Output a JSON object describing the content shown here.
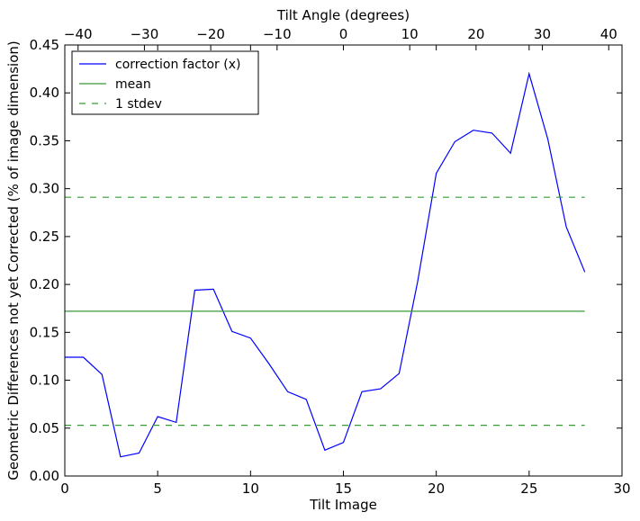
{
  "chart_data": {
    "type": "line",
    "xlabel": "Tilt Image",
    "ylabel": "Geometric Differences not yet Corrected (% of image dimension)",
    "top_xlabel": "Tilt Angle (degrees)",
    "xlim": [
      0,
      30
    ],
    "ylim": [
      0,
      0.45
    ],
    "top_xlim": [
      -42,
      42
    ],
    "x_ticks": [
      0,
      5,
      10,
      15,
      20,
      25,
      30
    ],
    "x_tick_labels": [
      "0",
      "5",
      "10",
      "15",
      "20",
      "25",
      "30"
    ],
    "y_ticks": [
      0,
      0.05,
      0.1,
      0.15,
      0.2,
      0.25,
      0.3,
      0.35,
      0.4,
      0.45
    ],
    "y_tick_labels": [
      "0.00",
      "0.05",
      "0.10",
      "0.15",
      "0.20",
      "0.25",
      "0.30",
      "0.35",
      "0.40",
      "0.45"
    ],
    "top_x_ticks": [
      -40,
      -30,
      -20,
      -10,
      0,
      10,
      20,
      30,
      40
    ],
    "top_x_tick_labels": [
      "−40",
      "−30",
      "−20",
      "−10",
      "0",
      "10",
      "20",
      "30",
      "40"
    ],
    "grid": false,
    "legend_placement": "top-left",
    "series": [
      {
        "name": "correction factor (x)",
        "color": "#0000ff",
        "style": "solid",
        "x": [
          0,
          1,
          2,
          3,
          4,
          5,
          6,
          7,
          8,
          9,
          10,
          11,
          12,
          13,
          14,
          15,
          16,
          17,
          18,
          19,
          20,
          21,
          22,
          23,
          24,
          25,
          26,
          27,
          28
        ],
        "y": [
          0.124,
          0.124,
          0.106,
          0.02,
          0.024,
          0.062,
          0.056,
          0.194,
          0.195,
          0.151,
          0.144,
          0.117,
          0.088,
          0.08,
          0.027,
          0.035,
          0.088,
          0.091,
          0.107,
          0.203,
          0.316,
          0.349,
          0.361,
          0.358,
          0.337,
          0.42,
          0.352,
          0.26,
          0.213
        ]
      },
      {
        "name": "mean",
        "color": "#3a9a3a",
        "style": "solid",
        "x": [
          0,
          28
        ],
        "y": [
          0.172,
          0.172
        ]
      },
      {
        "name": "1 stdev",
        "color": "#3a9a3a",
        "style": "dashed",
        "x": [
          0,
          28
        ],
        "y": [
          0.291,
          0.291
        ]
      },
      {
        "name": "",
        "color": "#3a9a3a",
        "style": "dashed",
        "x": [
          0,
          28
        ],
        "y": [
          0.053,
          0.053
        ]
      }
    ]
  }
}
